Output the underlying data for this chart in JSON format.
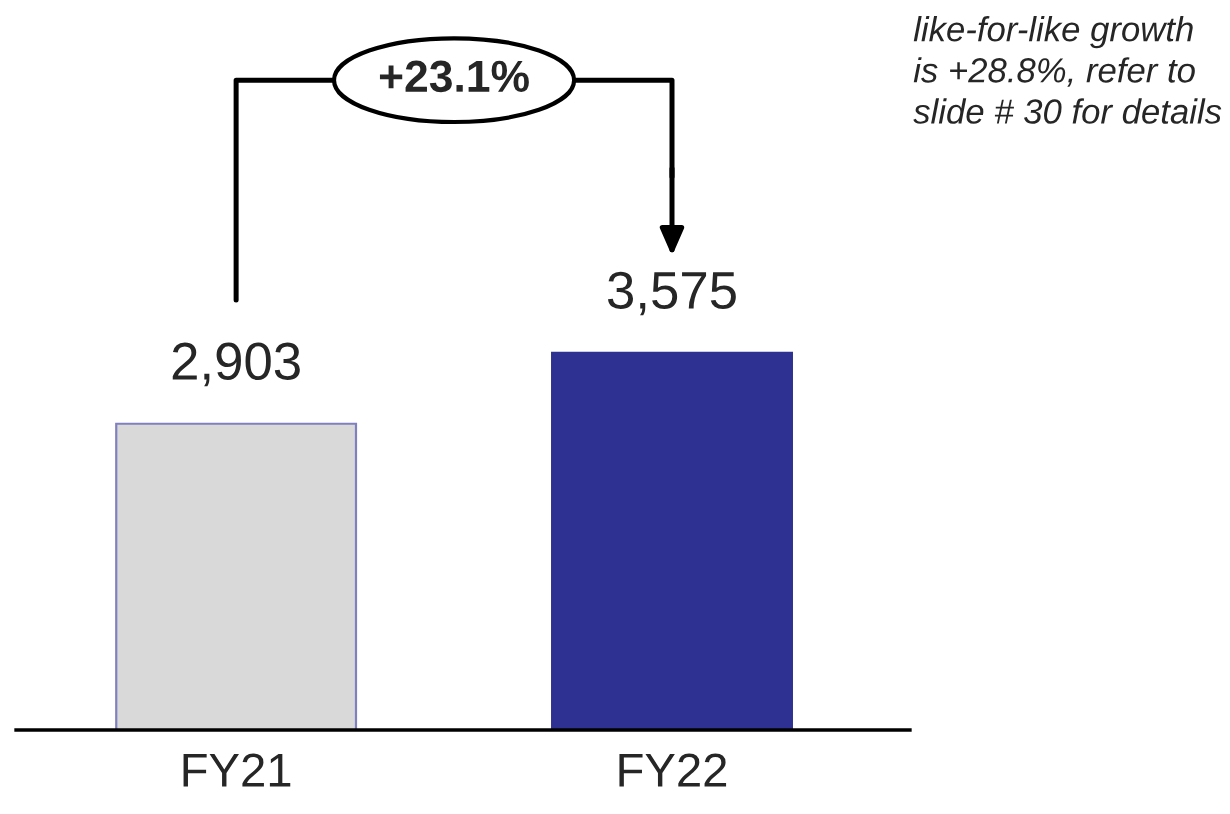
{
  "chart_data": {
    "type": "bar",
    "categories": [
      "FY21",
      "FY22"
    ],
    "values": [
      2903,
      3575
    ],
    "colors": [
      "#d9d9d9",
      "#2e3192"
    ],
    "value_labels": [
      "2,903",
      "3,575"
    ],
    "grid": false,
    "legend": false,
    "tick_labels": "x",
    "annotations": [
      "+23.1%",
      "like-for-like growth\nis +28.8%, refer to\nslide # 30 for details"
    ]
  }
}
